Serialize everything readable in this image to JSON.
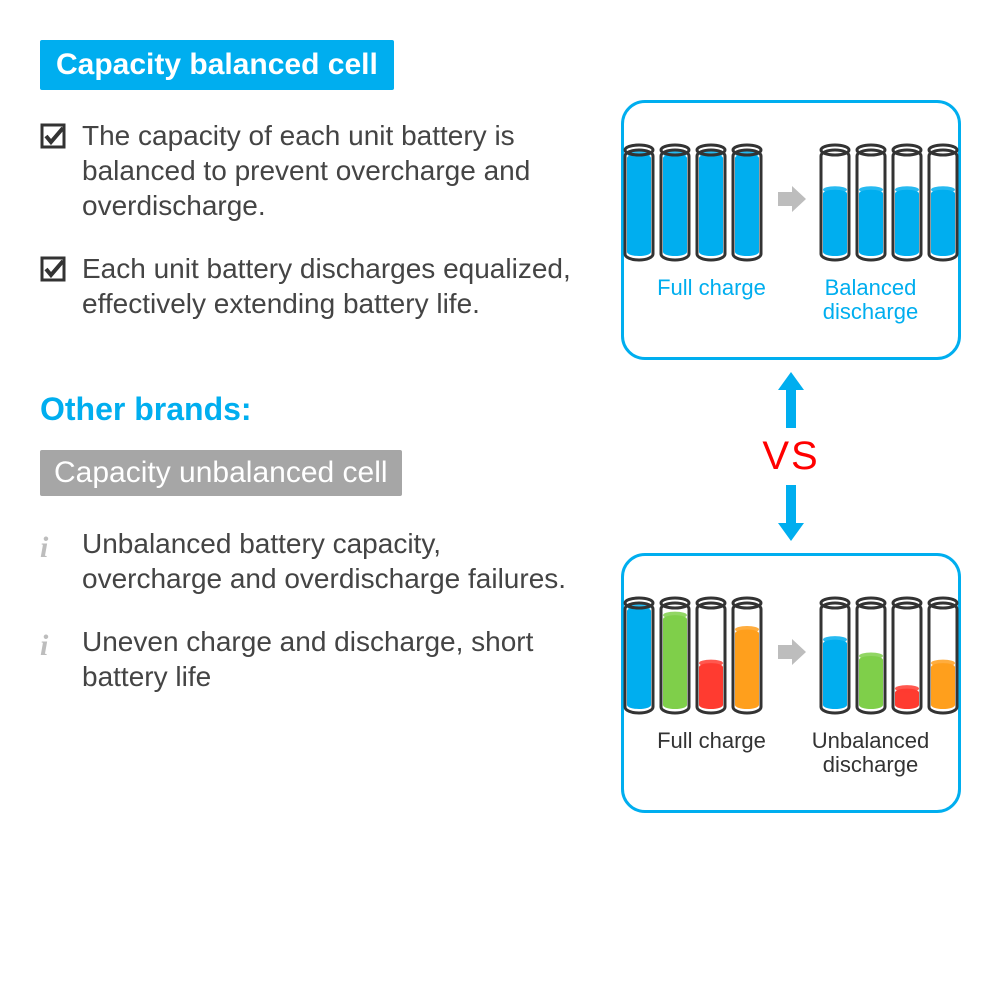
{
  "balanced": {
    "badge": "Capacity balanced cell",
    "badge_bg": "#00aeef",
    "badge_color": "#ffffff",
    "bullets": [
      "The capacity of each unit battery is balanced to prevent overcharge and overdischarge.",
      "Each unit battery discharges equalized, effectively extending battery life."
    ],
    "bullet_icon": "check",
    "panel": {
      "border_color": "#00aeef",
      "left_label": "Full charge",
      "right_label": "Balanced discharge",
      "label_color": "#00aeef",
      "left_cells": [
        {
          "fill": 1.0,
          "color": "#00aeef"
        },
        {
          "fill": 1.0,
          "color": "#00aeef"
        },
        {
          "fill": 1.0,
          "color": "#00aeef"
        },
        {
          "fill": 1.0,
          "color": "#00aeef"
        }
      ],
      "right_cells": [
        {
          "fill": 0.65,
          "color": "#00aeef"
        },
        {
          "fill": 0.65,
          "color": "#00aeef"
        },
        {
          "fill": 0.65,
          "color": "#00aeef"
        },
        {
          "fill": 0.65,
          "color": "#00aeef"
        }
      ]
    }
  },
  "other_brands_heading": "Other brands:",
  "unbalanced": {
    "badge": "Capacity unbalanced cell",
    "badge_bg": "#a6a6a6",
    "badge_color": "#ffffff",
    "bullets": [
      "Unbalanced battery capacity, overcharge and overdischarge failures.",
      "Uneven charge and discharge, short battery life"
    ],
    "bullet_icon": "info-i",
    "panel": {
      "border_color": "#00aeef",
      "left_label": "Full charge",
      "right_label": "Unbalanced discharge",
      "label_color": "#333333",
      "left_cells": [
        {
          "fill": 1.0,
          "color": "#00aeef"
        },
        {
          "fill": 0.92,
          "color": "#7fcf4a"
        },
        {
          "fill": 0.45,
          "color": "#ff3b30"
        },
        {
          "fill": 0.78,
          "color": "#ff9f1c"
        }
      ],
      "right_cells": [
        {
          "fill": 0.68,
          "color": "#00aeef"
        },
        {
          "fill": 0.52,
          "color": "#7fcf4a"
        },
        {
          "fill": 0.2,
          "color": "#ff3b30"
        },
        {
          "fill": 0.45,
          "color": "#ff9f1c"
        }
      ]
    }
  },
  "vs": {
    "text": "VS",
    "color": "#ff0000",
    "arrow_color": "#00aeef"
  },
  "cell_render": {
    "width": 28,
    "height": 110,
    "stroke": "#333333",
    "stroke_width": 3,
    "cap_color": "#333333",
    "gap": 2
  },
  "arrow_small": {
    "color": "#bdbdbd",
    "size": 30
  },
  "text_color": "#444444",
  "fontsize_body": 28,
  "fontsize_badge": 30,
  "fontsize_heading": 32,
  "fontsize_panel_label": 22,
  "fontsize_vs": 40
}
